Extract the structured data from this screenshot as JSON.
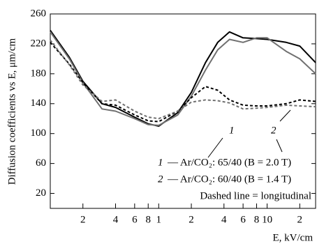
{
  "chart_data": {
    "type": "line",
    "ylabel": "Diffusion coefficients vs E, μm/cm",
    "xlabel": "E, kV/cm",
    "xscale": "log",
    "x": [
      0.1,
      0.15,
      0.2,
      0.3,
      0.4,
      0.6,
      0.8,
      1,
      1.5,
      2,
      2.7,
      3.5,
      4.5,
      6,
      8,
      10,
      15,
      20,
      28
    ],
    "series": [
      {
        "color": "#000000",
        "dashed": false,
        "values": [
          238,
          202,
          170,
          140,
          135,
          122,
          113,
          110,
          128,
          155,
          195,
          222,
          236,
          228,
          227,
          226,
          222,
          217,
          195
        ]
      },
      {
        "color": "#707070",
        "dashed": false,
        "values": [
          236,
          200,
          168,
          133,
          130,
          120,
          112,
          111,
          125,
          150,
          185,
          212,
          226,
          222,
          228,
          228,
          210,
          200,
          180
        ]
      },
      {
        "color": "#000000",
        "dashed": true,
        "values": [
          222,
          193,
          168,
          140,
          138,
          125,
          117,
          116,
          130,
          148,
          163,
          158,
          145,
          138,
          137,
          137,
          140,
          145,
          143
        ]
      },
      {
        "color": "#707070",
        "dashed": true,
        "values": [
          225,
          192,
          165,
          143,
          145,
          130,
          122,
          120,
          130,
          142,
          145,
          144,
          141,
          133,
          134,
          135,
          138,
          137,
          136
        ]
      }
    ],
    "xlim": [
      0.1,
      28
    ],
    "xticks": [
      {
        "value": 0.2,
        "label": "2"
      },
      {
        "value": 0.4,
        "label": "4"
      },
      {
        "value": 0.6,
        "label": "6"
      },
      {
        "value": 0.8,
        "label": "8"
      },
      1,
      2,
      4,
      6,
      8,
      10,
      {
        "value": 20,
        "label": "2"
      }
    ],
    "ylim": [
      0,
      260
    ],
    "yticks": [
      20,
      60,
      100,
      140,
      180,
      220,
      260
    ],
    "annotations": [
      "1",
      "2"
    ],
    "legend": [
      {
        "number": "1",
        "text": "— Ar/CO₂: 65/40 (B = 2.0 T)"
      },
      {
        "number": "2",
        "text": "— Ar/CO₂: 60/40 (B = 1.4 T)"
      }
    ],
    "note": "Dashed line = longitudinal"
  }
}
